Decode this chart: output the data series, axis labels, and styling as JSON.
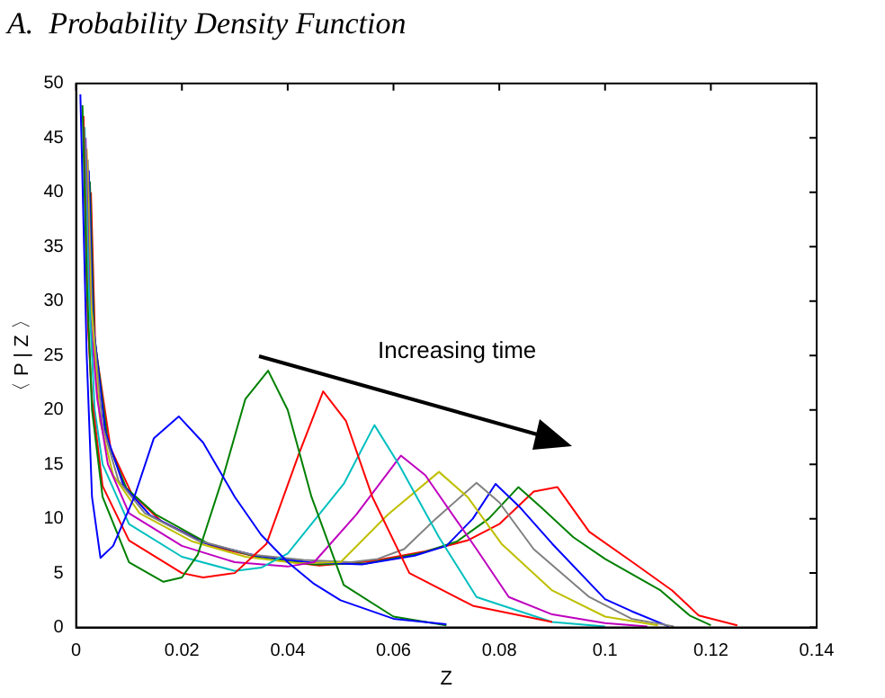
{
  "chart_data": {
    "type": "line",
    "title": "A.  Probability Density Function",
    "xlabel": "Z",
    "ylabel": "〈 P | Z 〉",
    "annotations": [
      "Increasing time"
    ],
    "xlim": [
      0,
      0.14
    ],
    "xticks": [
      0,
      0.02,
      0.04,
      0.06,
      0.08,
      0.1,
      0.12,
      0.14
    ],
    "ylim": [
      0,
      50
    ],
    "yticks": [
      0,
      5,
      10,
      15,
      20,
      25,
      30,
      35,
      40,
      45,
      50
    ],
    "grid": false,
    "legend": false,
    "marker": "none",
    "line_style": "solid",
    "series": [
      {
        "color": "#0000ff",
        "x": [
          0.0008,
          0.002,
          0.003,
          0.0046,
          0.007,
          0.011,
          0.0147,
          0.0194,
          0.024,
          0.03,
          0.035,
          0.04,
          0.045,
          0.05,
          0.06,
          0.07
        ],
        "values": [
          49,
          25,
          12,
          6.4,
          7.5,
          12,
          17.4,
          19.4,
          17,
          12,
          8.5,
          6,
          4,
          2.5,
          0.8,
          0.3
        ]
      },
      {
        "color": "#008000",
        "x": [
          0.0012,
          0.002,
          0.003,
          0.005,
          0.01,
          0.0165,
          0.02,
          0.023,
          0.028,
          0.032,
          0.0363,
          0.04,
          0.0445,
          0.0506,
          0.06,
          0.07
        ],
        "values": [
          48,
          32,
          20,
          12,
          6,
          4.2,
          4.6,
          6.7,
          14.2,
          21,
          23.6,
          20,
          12,
          3.9,
          1,
          0.2
        ]
      },
      {
        "color": "#ff0000",
        "x": [
          0.0014,
          0.0022,
          0.003,
          0.005,
          0.01,
          0.02,
          0.024,
          0.03,
          0.036,
          0.042,
          0.0467,
          0.051,
          0.056,
          0.063,
          0.075,
          0.09
        ],
        "values": [
          47,
          28,
          21,
          13,
          8,
          5,
          4.6,
          5,
          7.7,
          15.8,
          21.7,
          19,
          12,
          5,
          2,
          0.5
        ]
      },
      {
        "color": "#00bfbf",
        "x": [
          0.0016,
          0.0024,
          0.0035,
          0.005,
          0.01,
          0.02,
          0.03,
          0.035,
          0.04,
          0.0506,
          0.0564,
          0.061,
          0.0686,
          0.0757,
          0.09,
          0.1
        ],
        "values": [
          46,
          31,
          20,
          15,
          9.5,
          6.5,
          5.2,
          5.5,
          6.8,
          13.2,
          18.6,
          15,
          8.3,
          2.8,
          0.5,
          0.1
        ]
      },
      {
        "color": "#bf00bf",
        "x": [
          0.0018,
          0.0026,
          0.004,
          0.006,
          0.01,
          0.02,
          0.03,
          0.04,
          0.045,
          0.053,
          0.0614,
          0.066,
          0.0757,
          0.0818,
          0.09,
          0.1,
          0.108
        ],
        "values": [
          45,
          29,
          21,
          15,
          10.5,
          7.5,
          6,
          5.6,
          6,
          10.4,
          15.8,
          14,
          7.2,
          2.8,
          1.2,
          0.4,
          0.1
        ]
      },
      {
        "color": "#bfbf00",
        "x": [
          0.002,
          0.0028,
          0.0045,
          0.007,
          0.012,
          0.022,
          0.032,
          0.042,
          0.05,
          0.059,
          0.0686,
          0.074,
          0.0804,
          0.09,
          0.1,
          0.11
        ],
        "values": [
          44,
          30,
          19,
          14,
          10.5,
          7.9,
          6.5,
          5.9,
          6,
          10.4,
          14.3,
          12,
          7.7,
          3.4,
          1,
          0.2
        ]
      },
      {
        "color": "#808080",
        "x": [
          0.0022,
          0.003,
          0.005,
          0.008,
          0.013,
          0.023,
          0.033,
          0.043,
          0.052,
          0.057,
          0.062,
          0.068,
          0.0757,
          0.08,
          0.0865,
          0.097,
          0.105,
          0.113
        ],
        "values": [
          43,
          29,
          18.5,
          13.5,
          10.5,
          8,
          6.7,
          6.2,
          6,
          6.3,
          7.2,
          10,
          13.3,
          11.5,
          7.2,
          2.8,
          0.8,
          0.1
        ]
      },
      {
        "color": "#0000ff",
        "x": [
          0.0024,
          0.0032,
          0.0055,
          0.009,
          0.014,
          0.024,
          0.034,
          0.044,
          0.054,
          0.064,
          0.07,
          0.075,
          0.0793,
          0.084,
          0.09,
          0.1,
          0.105,
          0.112
        ],
        "values": [
          42,
          28,
          18,
          13,
          10.3,
          7.8,
          6.6,
          6,
          5.8,
          6.6,
          7.5,
          10,
          13.2,
          11,
          7.7,
          2.6,
          1.5,
          0.1
        ]
      },
      {
        "color": "#008000",
        "x": [
          0.0026,
          0.0034,
          0.006,
          0.0095,
          0.015,
          0.025,
          0.035,
          0.045,
          0.055,
          0.065,
          0.072,
          0.078,
          0.0836,
          0.088,
          0.094,
          0.1,
          0.1105,
          0.116,
          0.12
        ],
        "values": [
          41,
          27,
          17,
          12.8,
          10.4,
          7.7,
          6.4,
          5.8,
          5.9,
          6.8,
          7.9,
          10,
          12.9,
          11,
          8.3,
          6.3,
          3.4,
          1.1,
          0.2
        ]
      },
      {
        "color": "#ff0000",
        "x": [
          0.0028,
          0.0036,
          0.0065,
          0.0105,
          0.016,
          0.026,
          0.036,
          0.046,
          0.056,
          0.066,
          0.074,
          0.08,
          0.0865,
          0.091,
          0.097,
          0.1055,
          0.1127,
          0.1177,
          0.125
        ],
        "values": [
          40,
          26,
          16.5,
          12.3,
          9.8,
          7.4,
          6.3,
          5.7,
          6.1,
          7,
          8,
          9.5,
          12.5,
          12.9,
          8.8,
          5.9,
          3.4,
          1.1,
          0.2
        ]
      }
    ]
  }
}
